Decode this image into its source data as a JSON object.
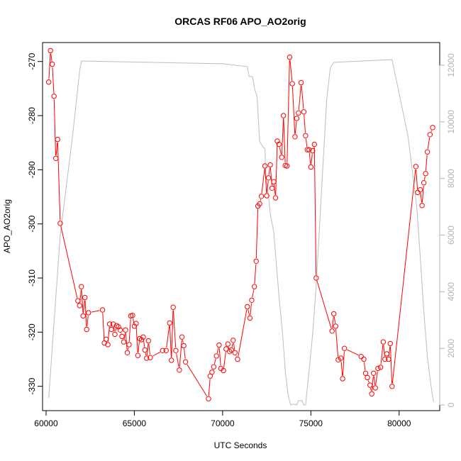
{
  "chart_data": {
    "type": "line",
    "title": "ORCAS RF06 APO_AO2orig",
    "xlabel": "UTC Seconds",
    "ylabel": "APO_AO2orig",
    "xlim": [
      59800,
      82300
    ],
    "ylim": [
      -334.5,
      -266.5
    ],
    "y2lim": [
      -200,
      12800
    ],
    "x_ticks": [
      60000,
      65000,
      70000,
      75000,
      80000
    ],
    "y_ticks": [
      -270,
      -280,
      -290,
      -300,
      -310,
      -320,
      -330
    ],
    "y2_ticks": [
      0,
      2000,
      4000,
      6000,
      8000,
      10000,
      12000
    ],
    "colors": {
      "apo": "#ff0000",
      "altitude": "#bebebe"
    },
    "series": [
      {
        "type": "line+points",
        "color": "#ff0000",
        "axis": "left",
        "points": [
          [
            60150,
            -273.8
          ],
          [
            60250,
            -268
          ],
          [
            60350,
            -270.5
          ],
          [
            60450,
            -276.4
          ],
          [
            60550,
            -287.9
          ],
          [
            60650,
            -284.4
          ],
          [
            60800,
            -299.9
          ],
          [
            61800,
            -314.2
          ],
          [
            61900,
            -315.1
          ],
          [
            62000,
            -311.6
          ],
          [
            62100,
            -317
          ],
          [
            62200,
            -313.6
          ],
          [
            62300,
            -319.5
          ],
          [
            62400,
            -316.4
          ],
          [
            63200,
            -315.9
          ],
          [
            63300,
            -322
          ],
          [
            63400,
            -321.3
          ],
          [
            63500,
            -322.3
          ],
          [
            63600,
            -318.5
          ],
          [
            63700,
            -319.5
          ],
          [
            63800,
            -318.5
          ],
          [
            63900,
            -320.4
          ],
          [
            64000,
            -318.8
          ],
          [
            64100,
            -319
          ],
          [
            64200,
            -319.6
          ],
          [
            64300,
            -320.8
          ],
          [
            64400,
            -321.8
          ],
          [
            64500,
            -319.6
          ],
          [
            64600,
            -323.8
          ],
          [
            64700,
            -322.3
          ],
          [
            64800,
            -317
          ],
          [
            64900,
            -316.9
          ],
          [
            65000,
            -318.9
          ],
          [
            65100,
            -318.4
          ],
          [
            65200,
            -324.3
          ],
          [
            65300,
            -321.2
          ],
          [
            65400,
            -321.4
          ],
          [
            65500,
            -320.9
          ],
          [
            65600,
            -323.3
          ],
          [
            65700,
            -324.8
          ],
          [
            65800,
            -321.6
          ],
          [
            65900,
            -324.7
          ],
          [
            66600,
            -323.4
          ],
          [
            66800,
            -323.4
          ],
          [
            67000,
            -318.3
          ],
          [
            67100,
            -325.2
          ],
          [
            67200,
            -315.4
          ],
          [
            67350,
            -323.4
          ],
          [
            67550,
            -327
          ],
          [
            67700,
            -320.9
          ],
          [
            67800,
            -322.5
          ],
          [
            67900,
            -325.5
          ],
          [
            69200,
            -332.3
          ],
          [
            69300,
            -328.1
          ],
          [
            69400,
            -327.4
          ],
          [
            69500,
            -326.4
          ],
          [
            69650,
            -324.4
          ],
          [
            69800,
            -322.4
          ],
          [
            69900,
            -326.7
          ],
          [
            70050,
            -327.1
          ],
          [
            70200,
            -323.1
          ],
          [
            70300,
            -322.2
          ],
          [
            70400,
            -323.6
          ],
          [
            70500,
            -323.3
          ],
          [
            70600,
            -321.5
          ],
          [
            70700,
            -323.8
          ],
          [
            70850,
            -325
          ],
          [
            71400,
            -315.3
          ],
          [
            71550,
            -317.4
          ],
          [
            71650,
            -314.1
          ],
          [
            71800,
            -311.6
          ],
          [
            71900,
            -306.9
          ],
          [
            72000,
            -296.7
          ],
          [
            72100,
            -296.3
          ],
          [
            72200,
            -294.9
          ],
          [
            72400,
            -289.3
          ],
          [
            72500,
            -294.8
          ],
          [
            72600,
            -291.5
          ],
          [
            72700,
            -289.1
          ],
          [
            72800,
            -293.4
          ],
          [
            72900,
            -292.2
          ],
          [
            73000,
            -295.2
          ],
          [
            73100,
            -284.7
          ],
          [
            73200,
            -285.3
          ],
          [
            73350,
            -287.7
          ],
          [
            73450,
            -280
          ],
          [
            73550,
            -289.2
          ],
          [
            73650,
            -289.3
          ],
          [
            73800,
            -269.2
          ],
          [
            73950,
            -274.1
          ],
          [
            74100,
            -283.9
          ],
          [
            74200,
            -280.5
          ],
          [
            74300,
            -279.5
          ],
          [
            74450,
            -273.9
          ],
          [
            74600,
            -279.3
          ],
          [
            74700,
            -283.7
          ],
          [
            74800,
            -286.3
          ],
          [
            74900,
            -286.3
          ],
          [
            75000,
            -289.5
          ],
          [
            75100,
            -286.5
          ],
          [
            75200,
            -285.3
          ],
          [
            75300,
            -310
          ],
          [
            76200,
            -319.8
          ],
          [
            76300,
            -316.6
          ],
          [
            76400,
            -318.9
          ],
          [
            76550,
            -325.1
          ],
          [
            76700,
            -324.8
          ],
          [
            76800,
            -328.6
          ],
          [
            76900,
            -323
          ],
          [
            77850,
            -324.5
          ],
          [
            78000,
            -325
          ],
          [
            78100,
            -327.6
          ],
          [
            78200,
            -328.4
          ],
          [
            78350,
            -329.8
          ],
          [
            78450,
            -331.4
          ],
          [
            78550,
            -327.6
          ],
          [
            78650,
            -330.3
          ],
          [
            78800,
            -326.7
          ],
          [
            78950,
            -326.5
          ],
          [
            79100,
            -321.8
          ],
          [
            79200,
            -325
          ],
          [
            79300,
            -324
          ],
          [
            79400,
            -325
          ],
          [
            79500,
            -322.1
          ],
          [
            79600,
            -330
          ],
          [
            80950,
            -289.4
          ],
          [
            81050,
            -294.2
          ],
          [
            81200,
            -293.7
          ],
          [
            81300,
            -296.6
          ],
          [
            81400,
            -292.4
          ],
          [
            81500,
            -290.7
          ],
          [
            81600,
            -286.7
          ],
          [
            81750,
            -283.5
          ],
          [
            81900,
            -282.2
          ]
        ]
      },
      {
        "type": "line",
        "color": "#bebebe",
        "axis": "right",
        "points": [
          [
            60150,
            250
          ],
          [
            60800,
            6000
          ],
          [
            61500,
            9500
          ],
          [
            61900,
            11800
          ],
          [
            62000,
            12150
          ],
          [
            70000,
            12050
          ],
          [
            71400,
            11950
          ],
          [
            71500,
            11600
          ],
          [
            71700,
            11600
          ],
          [
            71800,
            11200
          ],
          [
            71950,
            10900
          ],
          [
            72100,
            9300
          ],
          [
            72300,
            9100
          ],
          [
            72400,
            9050
          ],
          [
            72450,
            8000
          ],
          [
            72550,
            7700
          ],
          [
            72700,
            6750
          ],
          [
            72900,
            6100
          ],
          [
            73200,
            3800
          ],
          [
            73400,
            2500
          ],
          [
            73550,
            1200
          ],
          [
            73700,
            400
          ],
          [
            73850,
            0
          ],
          [
            74000,
            30
          ],
          [
            74200,
            0
          ],
          [
            74300,
            150
          ],
          [
            74500,
            150
          ],
          [
            74600,
            0
          ],
          [
            74700,
            0
          ],
          [
            74900,
            1200
          ],
          [
            75100,
            2500
          ],
          [
            75300,
            4200
          ],
          [
            75600,
            7500
          ],
          [
            75900,
            10800
          ],
          [
            76100,
            11900
          ],
          [
            76300,
            12100
          ],
          [
            79600,
            12200
          ],
          [
            80000,
            11000
          ],
          [
            80500,
            9500
          ],
          [
            81000,
            7000
          ],
          [
            81200,
            5200
          ],
          [
            81400,
            3300
          ],
          [
            81600,
            1700
          ],
          [
            81800,
            700
          ],
          [
            81950,
            100
          ]
        ]
      }
    ]
  }
}
